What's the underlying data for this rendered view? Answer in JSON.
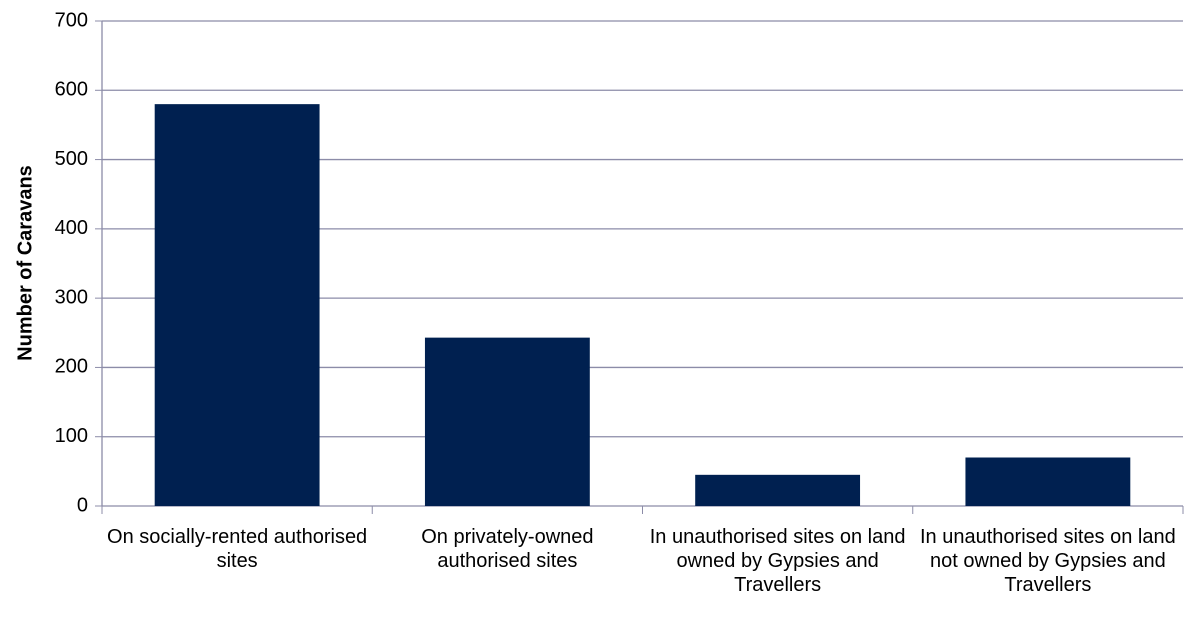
{
  "chart_data": {
    "type": "bar",
    "y_label": "Number of Caravans",
    "categories": [
      "On socially-rented authorised sites",
      "On privately-owned authorised sites",
      "In unauthorised sites on land owned by Gypsies and Travellers",
      "In unauthorised sites on land not owned by Gypsies and Travellers"
    ],
    "values": [
      580,
      243,
      45,
      70
    ],
    "color": "#002050",
    "ylim": [
      0,
      700
    ],
    "yticks": [
      0,
      100,
      200,
      300,
      400,
      500,
      600,
      700
    ],
    "grid": true
  }
}
